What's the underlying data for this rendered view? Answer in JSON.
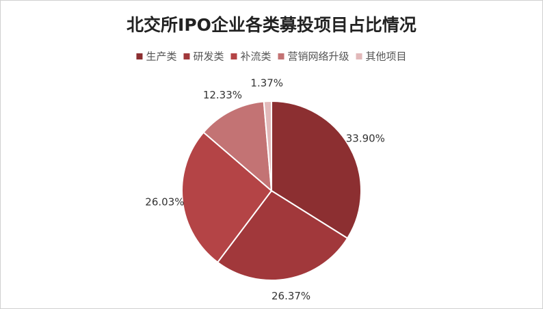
{
  "chart_data": {
    "type": "pie",
    "title": "北交所IPO企业各类募投项目占比情况",
    "categories": [
      "生产类",
      "研发类",
      "补流类",
      "营销网络升级",
      "其他项目"
    ],
    "values": [
      33.9,
      26.37,
      26.03,
      12.33,
      1.37
    ],
    "value_labels": [
      "33.90%",
      "26.37%",
      "26.03%",
      "12.33%",
      "1.37%"
    ],
    "colors": [
      "#8c2f31",
      "#a1383b",
      "#b44446",
      "#c37374",
      "#e2b9ba"
    ],
    "legend": "top"
  }
}
